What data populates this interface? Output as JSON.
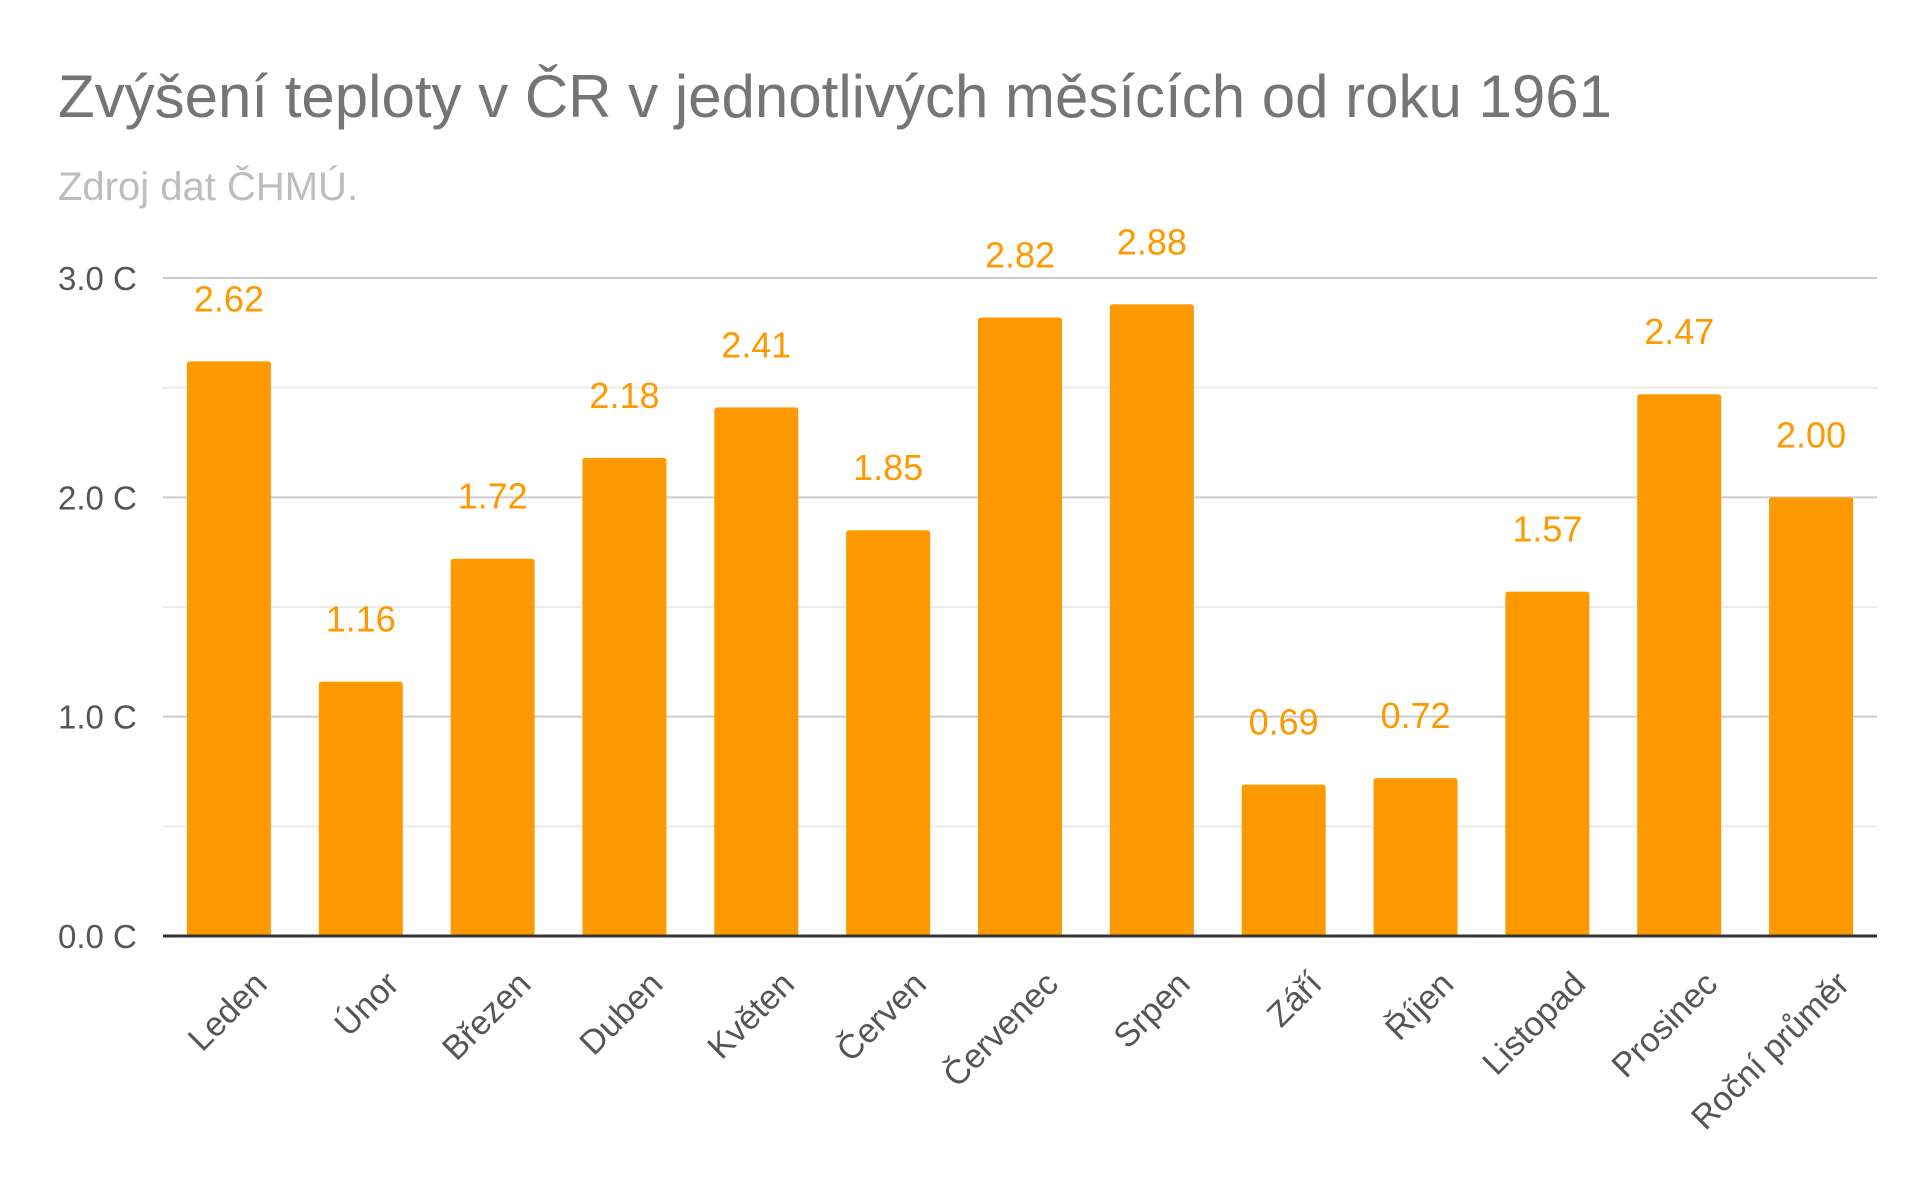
{
  "chart_data": {
    "type": "bar",
    "title": "Zvýšení teploty v ČR v jednotlivých měsících od roku 1961",
    "subtitle": "Zdroj dat ČHMÚ.",
    "categories": [
      "Leden",
      "Únor",
      "Březen",
      "Duben",
      "Květen",
      "Červen",
      "Červenec",
      "Srpen",
      "Září",
      "Říjen",
      "Listopad",
      "Prosinec",
      "Roční průměr"
    ],
    "values": [
      2.62,
      1.16,
      1.72,
      2.18,
      2.41,
      1.85,
      2.82,
      2.88,
      0.69,
      0.72,
      1.57,
      2.47,
      2.0
    ],
    "data_labels": [
      "2.62",
      "1.16",
      "1.72",
      "2.18",
      "2.41",
      "1.85",
      "2.82",
      "2.88",
      "0.69",
      "0.72",
      "1.57",
      "2.47",
      "2.00"
    ],
    "yticks": [
      {
        "value": 0,
        "label": "0.0 C"
      },
      {
        "value": 1,
        "label": "1.0 C"
      },
      {
        "value": 2,
        "label": "2.0 C"
      },
      {
        "value": 3,
        "label": "3.0 C"
      }
    ],
    "minor_gridlines": [
      0.5,
      1.5,
      2.5
    ],
    "ylim": [
      0,
      3
    ],
    "xlabel": "",
    "ylabel": "",
    "grid": true,
    "legend": "none",
    "colors": {
      "bar": "#ff9900",
      "data_label": "#ff9900",
      "major_grid": "#cccccc",
      "minor_grid": "#ebebeb",
      "axis": "#333333",
      "tick_label": "#555555"
    }
  }
}
